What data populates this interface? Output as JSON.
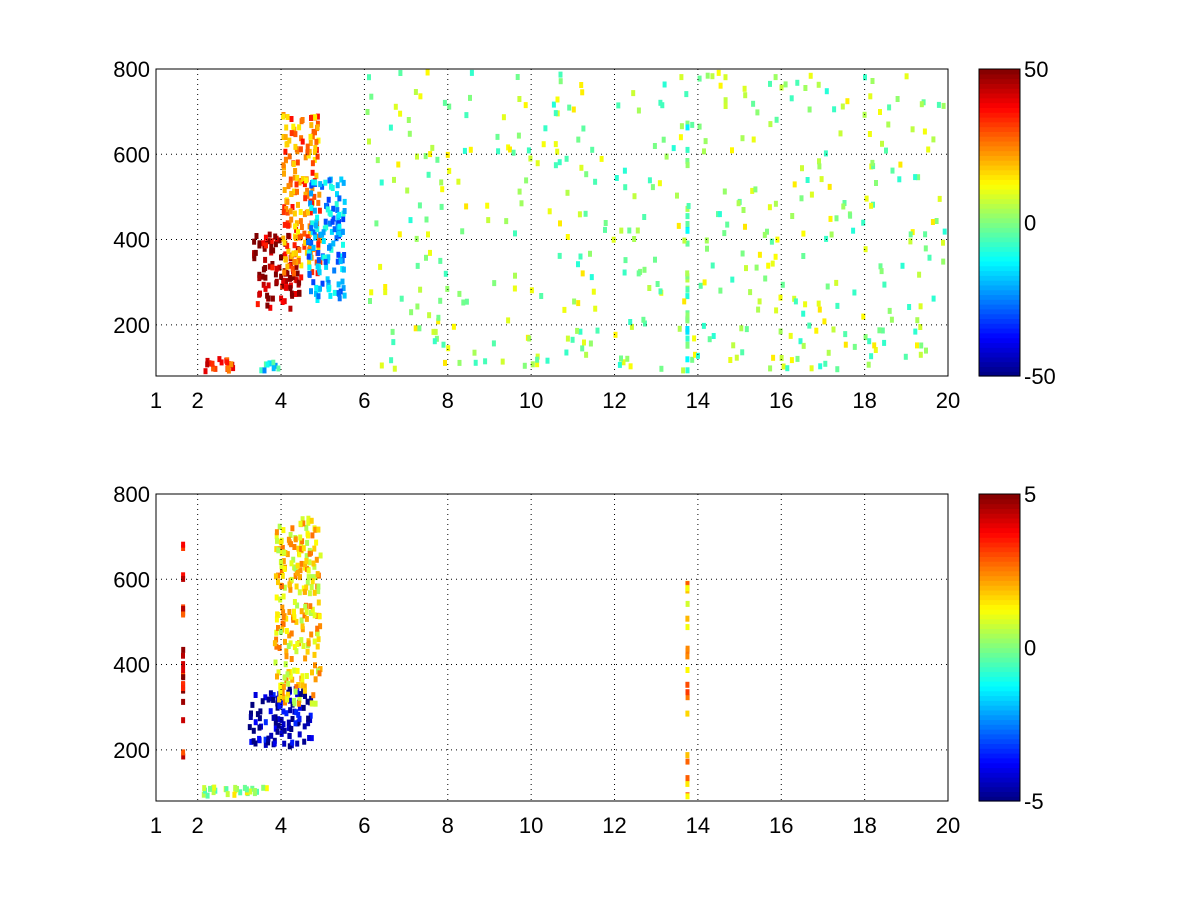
{
  "chart_data": [
    {
      "type": "heatmap",
      "title": "",
      "xlabel": "",
      "ylabel": "",
      "xlim": [
        1,
        20
      ],
      "ylim": [
        80,
        800
      ],
      "xticks": [
        "1",
        "2",
        "4",
        "6",
        "8",
        "10",
        "12",
        "14",
        "16",
        "18",
        "20"
      ],
      "xtick_values": [
        1,
        2,
        4,
        6,
        8,
        10,
        12,
        14,
        16,
        18,
        20
      ],
      "yticks": [
        "200",
        "400",
        "600",
        "800"
      ],
      "ytick_values": [
        200,
        400,
        600,
        800
      ],
      "grid": true,
      "colormap": "jet",
      "colorbar": {
        "min": -50,
        "max": 50,
        "ticks": [
          "50",
          "0",
          "-50"
        ],
        "tick_values": [
          50,
          0,
          -50
        ]
      },
      "features": [
        {
          "x": [
            2.0,
            2.9
          ],
          "y": [
            80,
            130
          ],
          "value": 35
        },
        {
          "x": [
            3.3,
            4.5
          ],
          "y": [
            230,
            420
          ],
          "value": 45
        },
        {
          "x": [
            4.0,
            5.0
          ],
          "y": [
            300,
            700
          ],
          "value": 25
        },
        {
          "x": [
            4.6,
            5.6
          ],
          "y": [
            250,
            550
          ],
          "value": -20
        },
        {
          "x": [
            3.4,
            4.0
          ],
          "y": [
            85,
            120
          ],
          "value": -15
        },
        {
          "x": [
            13.7,
            13.8
          ],
          "y": [
            80,
            680
          ],
          "value": -5
        },
        {
          "x": [
            6.0,
            20.0
          ],
          "y": [
            80,
            800
          ],
          "value": 3
        }
      ]
    },
    {
      "type": "heatmap",
      "title": "",
      "xlabel": "",
      "ylabel": "",
      "xlim": [
        1,
        20
      ],
      "ylim": [
        80,
        800
      ],
      "xticks": [
        "1",
        "2",
        "4",
        "6",
        "8",
        "10",
        "12",
        "14",
        "16",
        "18",
        "20"
      ],
      "xtick_values": [
        1,
        2,
        4,
        6,
        8,
        10,
        12,
        14,
        16,
        18,
        20
      ],
      "yticks": [
        "200",
        "400",
        "600",
        "800"
      ],
      "ytick_values": [
        200,
        400,
        600,
        800
      ],
      "grid": true,
      "colormap": "jet",
      "colorbar": {
        "min": -5,
        "max": 5,
        "ticks": [
          "5",
          "0",
          "-5"
        ],
        "tick_values": [
          5,
          0,
          -5
        ]
      },
      "features": [
        {
          "x": [
            3.2,
            4.8
          ],
          "y": [
            200,
            350
          ],
          "value": -4.5
        },
        {
          "x": [
            3.8,
            5.0
          ],
          "y": [
            300,
            750
          ],
          "value": 1.5
        },
        {
          "x": [
            2.0,
            3.8
          ],
          "y": [
            85,
            120
          ],
          "value": 0.5
        },
        {
          "x": [
            13.7,
            13.8
          ],
          "y": [
            80,
            600
          ],
          "value": 2
        },
        {
          "x": [
            1.6,
            1.7
          ],
          "y": [
            150,
            700
          ],
          "value": 4
        }
      ]
    }
  ]
}
